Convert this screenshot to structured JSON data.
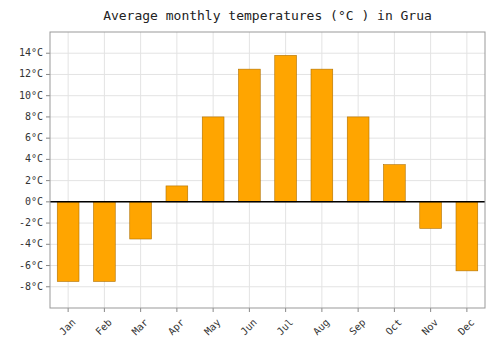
{
  "chart_data": {
    "type": "bar",
    "title": "Average monthly temperatures (°C ) in Grua",
    "categories": [
      "Jan",
      "Feb",
      "Mar",
      "Apr",
      "May",
      "Jun",
      "Jul",
      "Aug",
      "Sep",
      "Oct",
      "Nov",
      "Dec"
    ],
    "values": [
      -7.5,
      -7.5,
      -3.5,
      1.5,
      8.0,
      12.5,
      13.8,
      12.5,
      8.0,
      3.5,
      -2.5,
      -6.5
    ],
    "color": "#FFA500",
    "ylim": [
      -10,
      16
    ],
    "yticks": [
      {
        "value": -8,
        "label": "-8°C"
      },
      {
        "value": -6,
        "label": "-6°C"
      },
      {
        "value": -4,
        "label": "-4°C"
      },
      {
        "value": -2,
        "label": "-2°C"
      },
      {
        "value": 0,
        "label": "0°C"
      },
      {
        "value": 2,
        "label": "2°C"
      },
      {
        "value": 4,
        "label": "4°C"
      },
      {
        "value": 6,
        "label": "6°C"
      },
      {
        "value": 8,
        "label": "8°C"
      },
      {
        "value": 10,
        "label": "10°C"
      },
      {
        "value": 12,
        "label": "12°C"
      },
      {
        "value": 14,
        "label": "14°C"
      }
    ],
    "grid": true
  }
}
